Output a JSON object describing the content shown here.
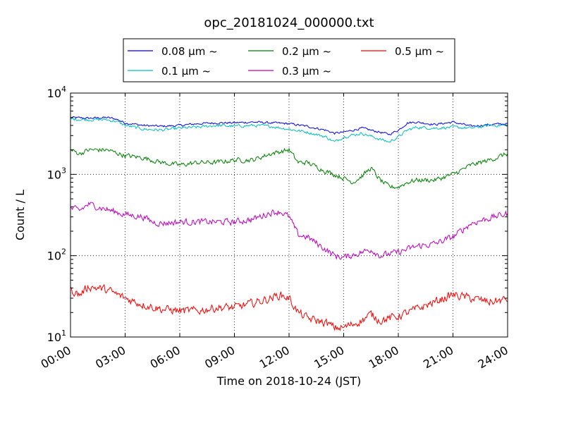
{
  "chart_data": {
    "type": "line",
    "title": "opc_20181024_000000.txt",
    "xlabel": "Time on 2018-10-24 (JST)",
    "ylabel": "Count / L",
    "x_unit": "hours",
    "xlim": [
      0,
      24
    ],
    "ylim": [
      10,
      10000
    ],
    "yscale": "log",
    "grid": true,
    "legend_position": "top-center-outside",
    "x_ticks": [
      0,
      3,
      6,
      9,
      12,
      15,
      18,
      21,
      24
    ],
    "x_tick_labels": [
      "00:00",
      "03:00",
      "06:00",
      "09:00",
      "12:00",
      "15:00",
      "18:00",
      "21:00",
      "24:00"
    ],
    "y_ticks": [
      10,
      100,
      1000,
      10000
    ],
    "y_tick_labels": [
      {
        "base": "10",
        "exp": "1"
      },
      {
        "base": "10",
        "exp": "2"
      },
      {
        "base": "10",
        "exp": "3"
      },
      {
        "base": "10",
        "exp": "4"
      }
    ],
    "series": [
      {
        "name": "0.08 μm ~",
        "color": "#0000ff",
        "x": [
          0,
          1,
          2,
          2.5,
          3,
          4,
          5,
          6,
          7,
          8,
          9,
          10,
          11,
          12,
          13,
          14,
          14.5,
          15,
          16,
          17,
          17.5,
          18,
          18.5,
          19,
          20,
          21,
          22,
          23,
          24
        ],
        "y": [
          5000,
          4900,
          5000,
          4800,
          4300,
          4000,
          3900,
          4000,
          4200,
          4300,
          4300,
          4400,
          4300,
          4200,
          3900,
          3500,
          3200,
          3300,
          3700,
          3300,
          3100,
          3500,
          4300,
          4400,
          4100,
          4400,
          3900,
          4100,
          4200
        ]
      },
      {
        "name": "0.1 μm ~",
        "color": "#00bfbf",
        "x": [
          0,
          1,
          2,
          2.5,
          3,
          4,
          5,
          6,
          7,
          8,
          9,
          10,
          11,
          12,
          13,
          14,
          14.5,
          15,
          16,
          17,
          17.5,
          18,
          18.5,
          19,
          20,
          21,
          22,
          23,
          24
        ],
        "y": [
          4800,
          4700,
          4700,
          4500,
          4000,
          3600,
          3500,
          3700,
          3800,
          4000,
          3900,
          4000,
          3900,
          3600,
          3300,
          2900,
          2500,
          2900,
          3200,
          2700,
          2500,
          2900,
          3500,
          3800,
          3700,
          3800,
          3700,
          4000,
          4000
        ]
      },
      {
        "name": "0.2 μm ~",
        "color": "#008000",
        "x": [
          0,
          0.5,
          1,
          2,
          3,
          4,
          5,
          6,
          7,
          8,
          9,
          10,
          11,
          11.5,
          12,
          12.5,
          13,
          14,
          15,
          15.5,
          16,
          16.5,
          17,
          17.5,
          18,
          18.5,
          19,
          20,
          21,
          22,
          23,
          24
        ],
        "y": [
          2000,
          1800,
          2000,
          2000,
          1700,
          1600,
          1400,
          1300,
          1400,
          1400,
          1500,
          1500,
          1800,
          1900,
          2000,
          1400,
          1400,
          1100,
          900,
          800,
          950,
          1200,
          850,
          700,
          700,
          800,
          850,
          850,
          1000,
          1300,
          1500,
          1800
        ]
      },
      {
        "name": "0.3 μm ~",
        "color": "#bf00bf",
        "x": [
          0,
          0.5,
          1,
          2,
          3,
          4,
          4.5,
          5,
          6,
          7,
          8,
          9,
          10,
          11,
          11.5,
          12,
          12.5,
          13,
          14,
          14.5,
          15,
          16,
          16.5,
          17,
          18,
          19,
          20,
          21,
          22,
          23,
          24
        ],
        "y": [
          380,
          360,
          430,
          370,
          320,
          300,
          260,
          250,
          260,
          260,
          260,
          260,
          280,
          340,
          350,
          300,
          180,
          170,
          120,
          100,
          95,
          110,
          120,
          100,
          110,
          130,
          140,
          170,
          250,
          290,
          330
        ]
      },
      {
        "name": "0.5 μm ~",
        "color": "#ff0000",
        "x": [
          0,
          0.5,
          1,
          2,
          3,
          4,
          5,
          6,
          7,
          8,
          9,
          10,
          11,
          11.5,
          12,
          12.5,
          13,
          14,
          14.5,
          15,
          16,
          16.5,
          17,
          18,
          19,
          20,
          21,
          22,
          23,
          24
        ],
        "y": [
          38,
          33,
          42,
          38,
          30,
          25,
          22,
          21,
          21,
          23,
          23,
          26,
          30,
          33,
          30,
          20,
          17,
          15,
          13,
          13,
          16,
          19,
          16,
          18,
          22,
          27,
          33,
          30,
          27,
          29
        ]
      }
    ]
  }
}
